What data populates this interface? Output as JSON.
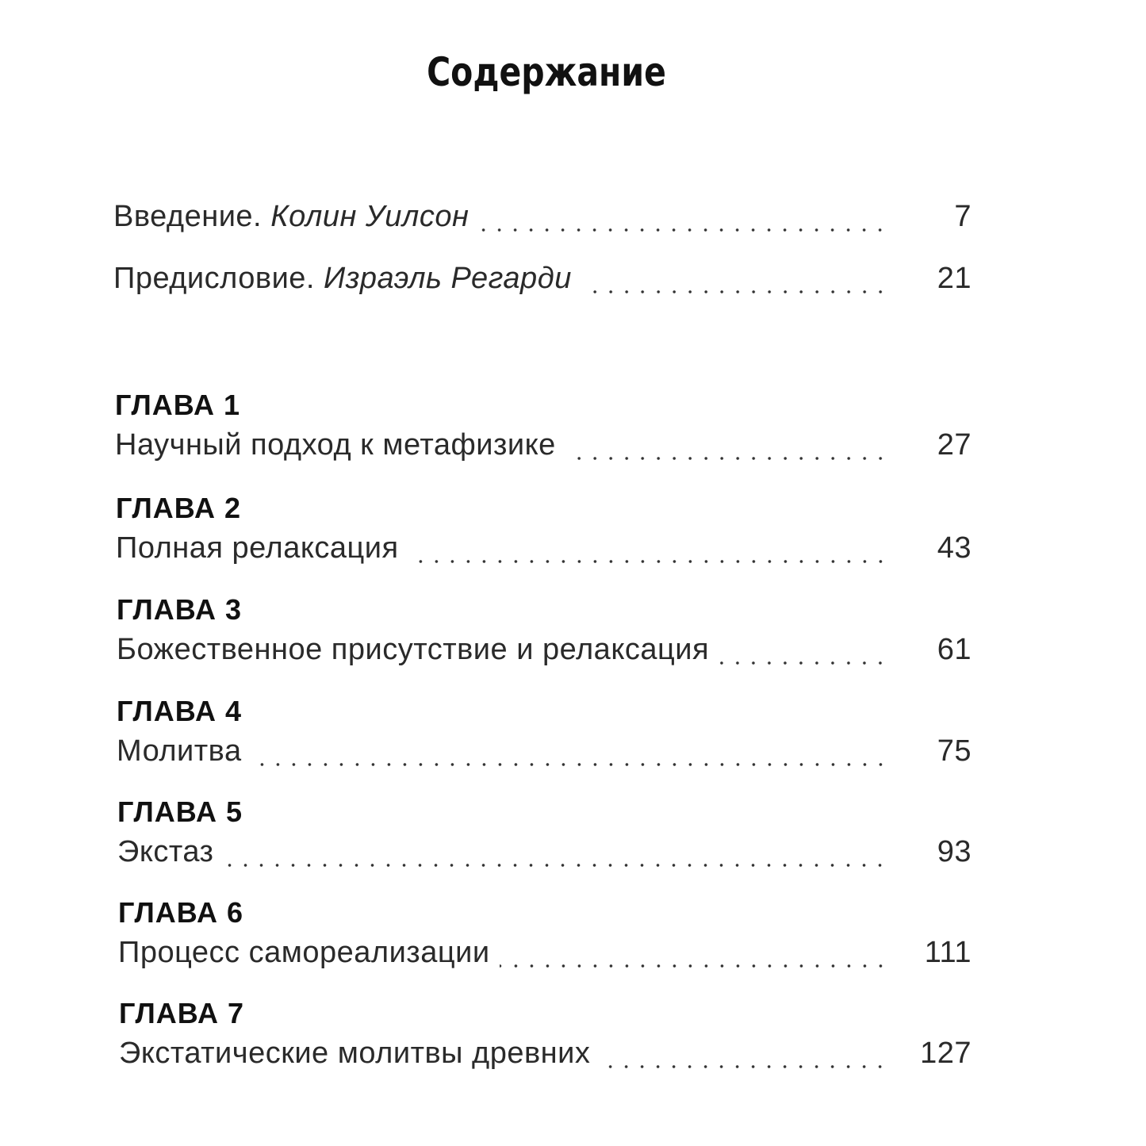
{
  "title": "Содержание",
  "front": [
    {
      "label": "Введение.",
      "author": "Колин Уилсон",
      "page": "7"
    },
    {
      "label": "Предисловие.",
      "author": "Израэль Регарди",
      "page": "21"
    }
  ],
  "chapters": [
    {
      "label": "ГЛАВА 1",
      "title": "Научный подход к метафизике",
      "page": "27"
    },
    {
      "label": "ГЛАВА 2",
      "title": "Полная релаксация",
      "page": "43"
    },
    {
      "label": "ГЛАВА 3",
      "title": "Божественное присутствие и релаксация",
      "page": "61"
    },
    {
      "label": "ГЛАВА 4",
      "title": "Молитва",
      "page": "75"
    },
    {
      "label": "ГЛАВА 5",
      "title": "Экстаз",
      "page": "93"
    },
    {
      "label": "ГЛАВА 6",
      "title": "Процесс самореализации",
      "page": "111"
    },
    {
      "label": "ГЛАВА 7",
      "title": "Экстатические молитвы древних",
      "page": "127"
    }
  ]
}
